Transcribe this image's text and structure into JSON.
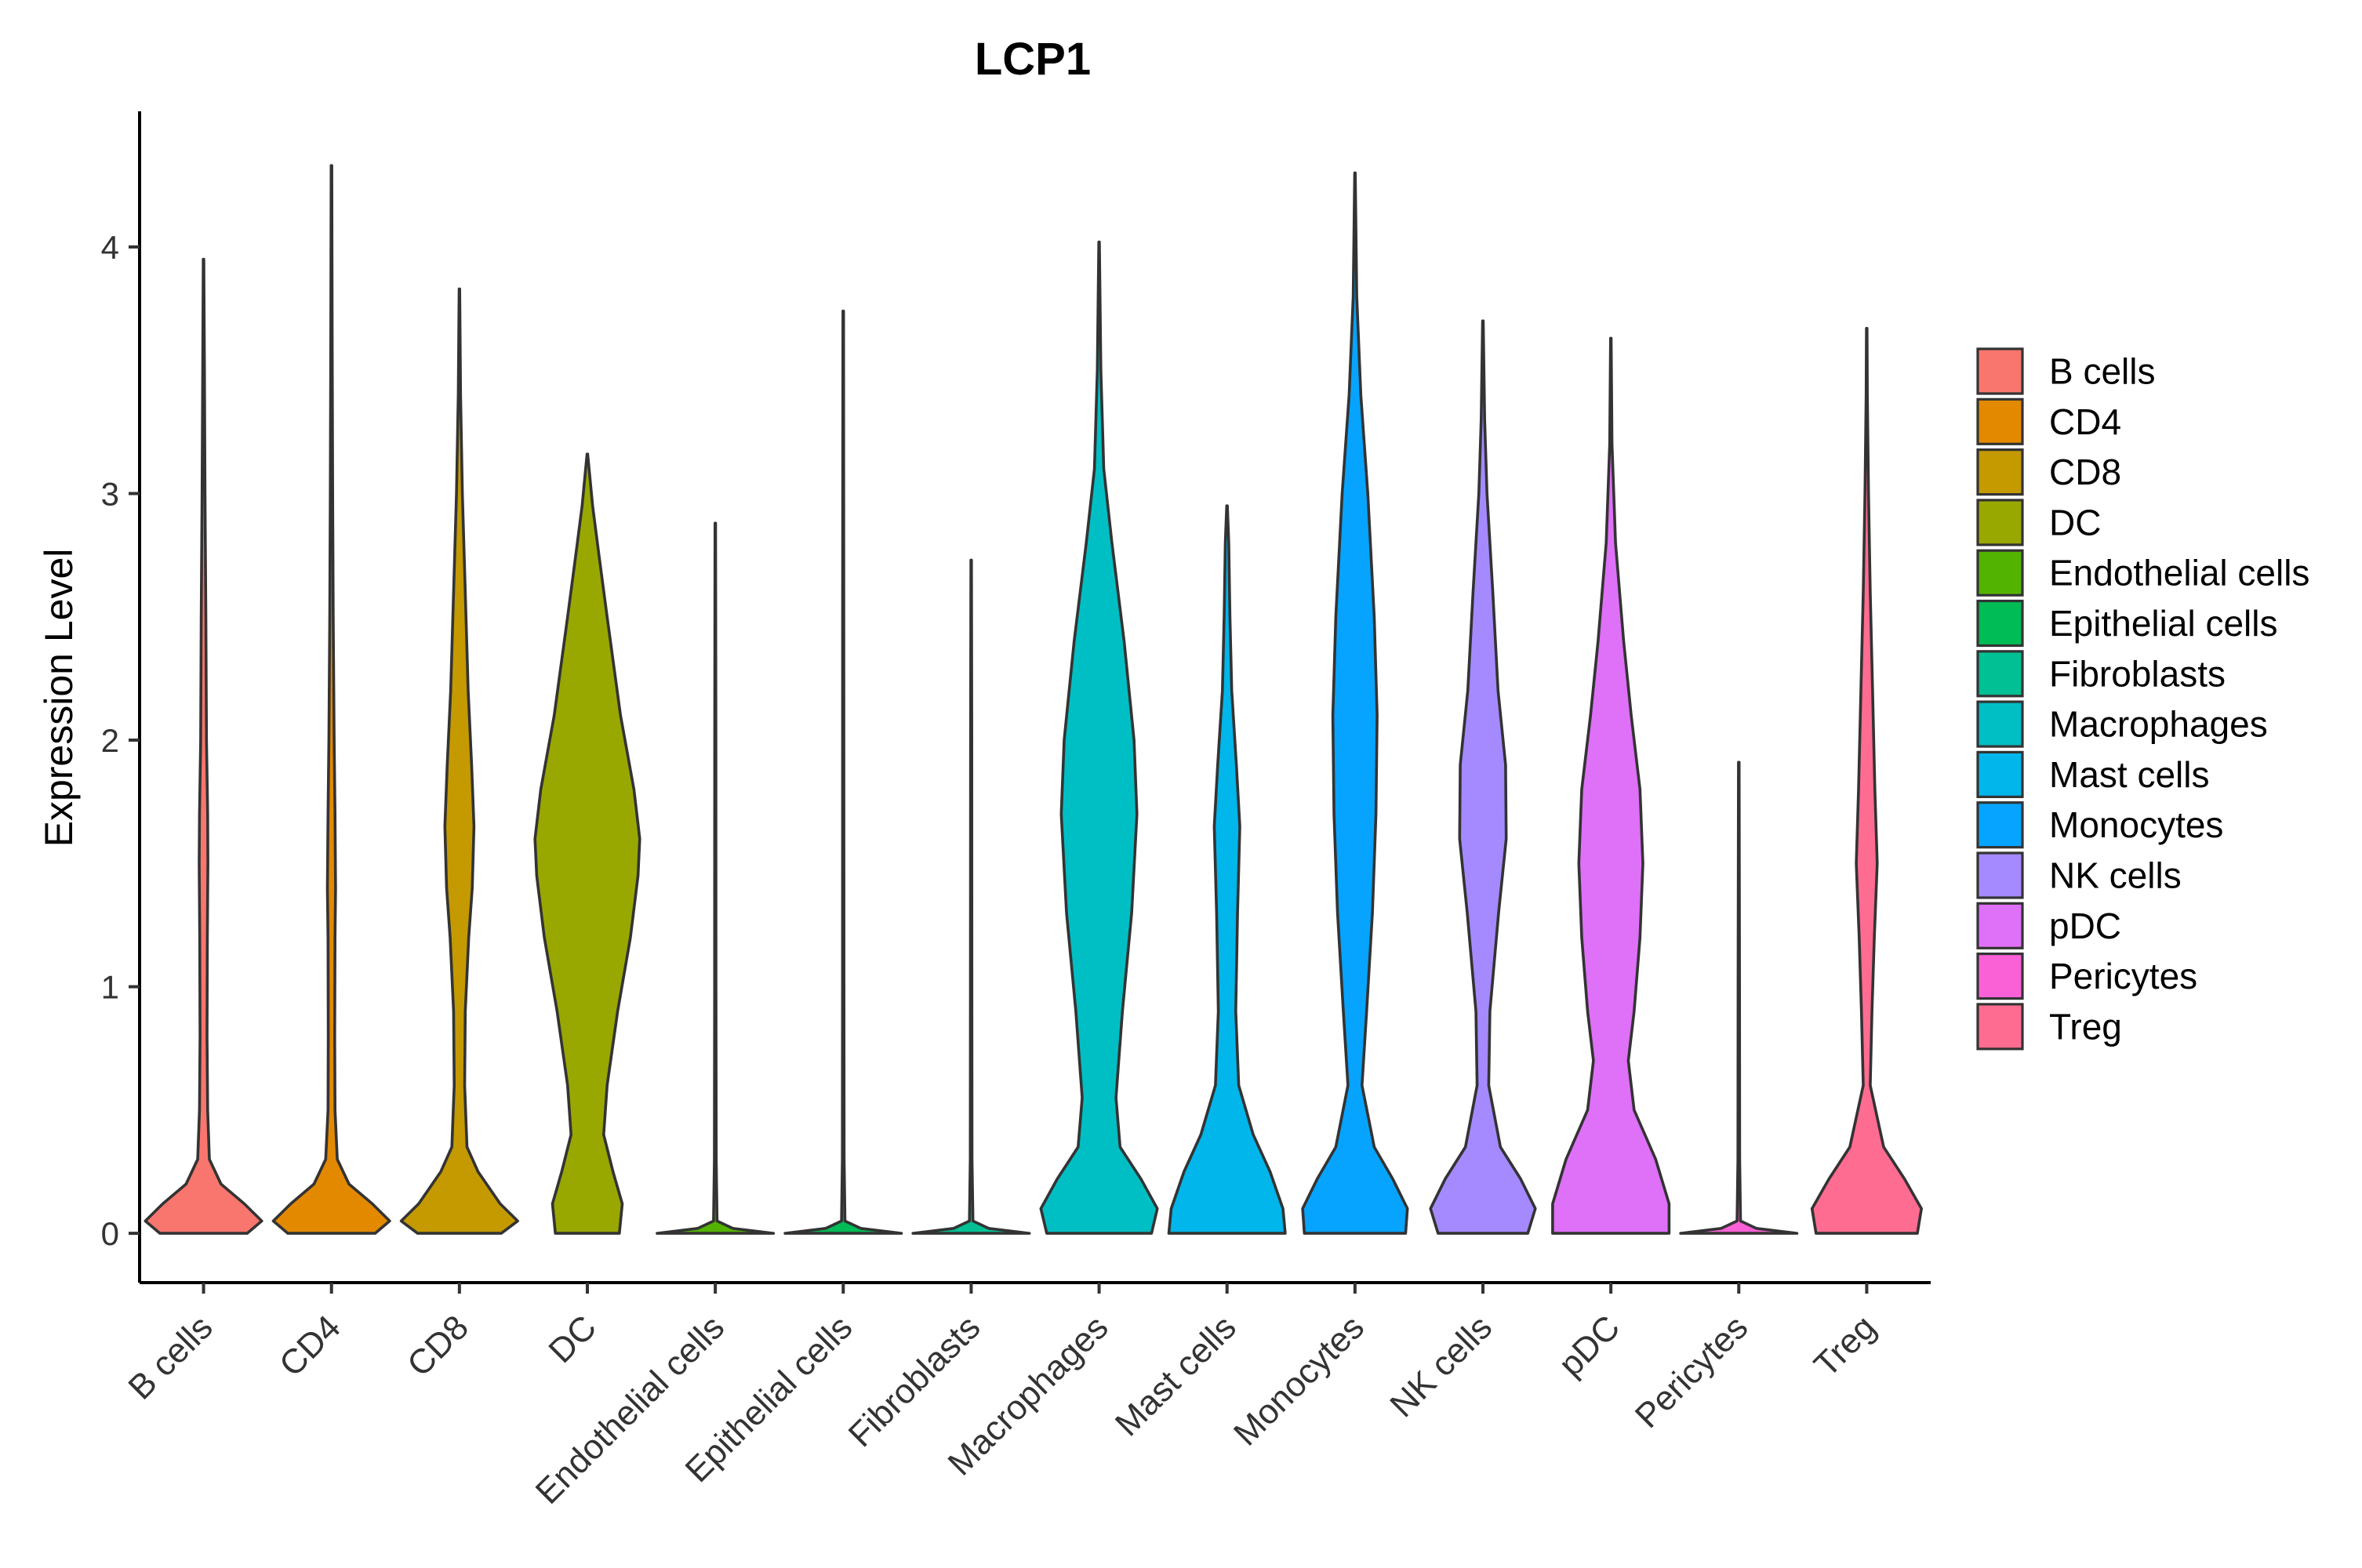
{
  "chart_data": {
    "type": "violin",
    "title": "LCP1",
    "xlabel": "",
    "ylabel": "Expression Level",
    "ylim": [
      -0.2,
      4.55
    ],
    "yticks": [
      0,
      1,
      2,
      3,
      4
    ],
    "grid": false,
    "legend_position": "right",
    "categories": [
      "B cells",
      "CD4",
      "CD8",
      "DC",
      "Endothelial cells",
      "Epithelial cells",
      "Fibroblasts",
      "Macrophages",
      "Mast cells",
      "Monocytes",
      "NK cells",
      "pDC",
      "Pericytes",
      "Treg"
    ],
    "series": [
      {
        "name": "B cells",
        "color": "#F8766D",
        "max": 3.95,
        "profile": [
          [
            0,
            0.75
          ],
          [
            0.05,
            1.0
          ],
          [
            0.12,
            0.7
          ],
          [
            0.2,
            0.3
          ],
          [
            0.3,
            0.1
          ],
          [
            0.5,
            0.07
          ],
          [
            0.8,
            0.06
          ],
          [
            1.2,
            0.065
          ],
          [
            1.5,
            0.075
          ],
          [
            1.7,
            0.07
          ],
          [
            2.0,
            0.05
          ],
          [
            2.5,
            0.04
          ],
          [
            3.0,
            0.025
          ],
          [
            3.5,
            0.015
          ],
          [
            3.95,
            0.005
          ]
        ]
      },
      {
        "name": "CD4",
        "color": "#E38900",
        "max": 4.33,
        "profile": [
          [
            0,
            0.75
          ],
          [
            0.05,
            1.0
          ],
          [
            0.12,
            0.7
          ],
          [
            0.2,
            0.3
          ],
          [
            0.3,
            0.1
          ],
          [
            0.5,
            0.06
          ],
          [
            0.8,
            0.055
          ],
          [
            1.2,
            0.06
          ],
          [
            1.4,
            0.07
          ],
          [
            1.7,
            0.06
          ],
          [
            2.0,
            0.045
          ],
          [
            2.5,
            0.03
          ],
          [
            3.0,
            0.02
          ],
          [
            3.6,
            0.012
          ],
          [
            4.33,
            0.005
          ]
        ]
      },
      {
        "name": "CD8",
        "color": "#C49A00",
        "max": 3.83,
        "profile": [
          [
            0,
            0.72
          ],
          [
            0.05,
            1.0
          ],
          [
            0.12,
            0.7
          ],
          [
            0.25,
            0.32
          ],
          [
            0.35,
            0.13
          ],
          [
            0.6,
            0.09
          ],
          [
            0.9,
            0.1
          ],
          [
            1.2,
            0.16
          ],
          [
            1.4,
            0.22
          ],
          [
            1.65,
            0.25
          ],
          [
            1.9,
            0.21
          ],
          [
            2.2,
            0.15
          ],
          [
            2.6,
            0.1
          ],
          [
            3.0,
            0.05
          ],
          [
            3.4,
            0.02
          ],
          [
            3.83,
            0.005
          ]
        ]
      },
      {
        "name": "DC",
        "color": "#99A800",
        "max": 3.16,
        "profile": [
          [
            0,
            0.55
          ],
          [
            0.12,
            0.6
          ],
          [
            0.25,
            0.44
          ],
          [
            0.4,
            0.28
          ],
          [
            0.6,
            0.34
          ],
          [
            0.9,
            0.52
          ],
          [
            1.2,
            0.74
          ],
          [
            1.45,
            0.87
          ],
          [
            1.6,
            0.9
          ],
          [
            1.8,
            0.8
          ],
          [
            2.1,
            0.57
          ],
          [
            2.5,
            0.34
          ],
          [
            2.75,
            0.2
          ],
          [
            2.95,
            0.09
          ],
          [
            3.16,
            0.005
          ]
        ]
      },
      {
        "name": "Endothelial cells",
        "color": "#53B400",
        "max": 2.88,
        "profile": [
          [
            0,
            1.0
          ],
          [
            0.02,
            0.3
          ],
          [
            0.05,
            0.03
          ],
          [
            0.3,
            0.015
          ],
          [
            1.0,
            0.012
          ],
          [
            2.0,
            0.01
          ],
          [
            2.88,
            0.005
          ]
        ]
      },
      {
        "name": "Epithelial cells",
        "color": "#00BC56",
        "max": 3.74,
        "profile": [
          [
            0,
            1.0
          ],
          [
            0.02,
            0.3
          ],
          [
            0.05,
            0.03
          ],
          [
            0.3,
            0.015
          ],
          [
            1.0,
            0.012
          ],
          [
            2.5,
            0.01
          ],
          [
            3.74,
            0.005
          ]
        ]
      },
      {
        "name": "Fibroblasts",
        "color": "#00C094",
        "max": 2.73,
        "profile": [
          [
            0,
            1.0
          ],
          [
            0.02,
            0.3
          ],
          [
            0.05,
            0.03
          ],
          [
            0.3,
            0.015
          ],
          [
            1.0,
            0.012
          ],
          [
            2.0,
            0.01
          ],
          [
            2.73,
            0.005
          ]
        ]
      },
      {
        "name": "Macrophages",
        "color": "#00BFC4",
        "max": 4.02,
        "profile": [
          [
            0,
            0.9
          ],
          [
            0.1,
            1.0
          ],
          [
            0.22,
            0.72
          ],
          [
            0.35,
            0.36
          ],
          [
            0.55,
            0.29
          ],
          [
            0.9,
            0.4
          ],
          [
            1.3,
            0.56
          ],
          [
            1.7,
            0.65
          ],
          [
            2.0,
            0.6
          ],
          [
            2.4,
            0.43
          ],
          [
            2.8,
            0.22
          ],
          [
            3.1,
            0.08
          ],
          [
            3.5,
            0.03
          ],
          [
            4.02,
            0.005
          ]
        ]
      },
      {
        "name": "Mast cells",
        "color": "#00B6EB",
        "max": 2.95,
        "profile": [
          [
            0,
            1.0
          ],
          [
            0.1,
            0.96
          ],
          [
            0.25,
            0.74
          ],
          [
            0.4,
            0.45
          ],
          [
            0.6,
            0.2
          ],
          [
            0.9,
            0.15
          ],
          [
            1.3,
            0.18
          ],
          [
            1.65,
            0.22
          ],
          [
            1.9,
            0.16
          ],
          [
            2.2,
            0.08
          ],
          [
            2.5,
            0.05
          ],
          [
            2.8,
            0.03
          ],
          [
            2.95,
            0.005
          ]
        ]
      },
      {
        "name": "Monocytes",
        "color": "#06A4FF",
        "max": 4.3,
        "profile": [
          [
            0,
            0.87
          ],
          [
            0.1,
            0.9
          ],
          [
            0.22,
            0.65
          ],
          [
            0.35,
            0.33
          ],
          [
            0.6,
            0.12
          ],
          [
            0.9,
            0.2
          ],
          [
            1.3,
            0.3
          ],
          [
            1.7,
            0.36
          ],
          [
            2.1,
            0.38
          ],
          [
            2.5,
            0.33
          ],
          [
            3.0,
            0.22
          ],
          [
            3.4,
            0.1
          ],
          [
            3.8,
            0.03
          ],
          [
            4.3,
            0.005
          ]
        ]
      },
      {
        "name": "NK cells",
        "color": "#A58AFF",
        "max": 3.7,
        "profile": [
          [
            0,
            0.77
          ],
          [
            0.1,
            0.9
          ],
          [
            0.22,
            0.65
          ],
          [
            0.35,
            0.3
          ],
          [
            0.6,
            0.1
          ],
          [
            0.9,
            0.12
          ],
          [
            1.3,
            0.27
          ],
          [
            1.6,
            0.4
          ],
          [
            1.9,
            0.39
          ],
          [
            2.2,
            0.26
          ],
          [
            2.6,
            0.17
          ],
          [
            3.0,
            0.07
          ],
          [
            3.3,
            0.03
          ],
          [
            3.7,
            0.005
          ]
        ]
      },
      {
        "name": "pDC",
        "color": "#DF70F8",
        "max": 3.63,
        "profile": [
          [
            0,
            1.0
          ],
          [
            0.12,
            1.0
          ],
          [
            0.3,
            0.77
          ],
          [
            0.5,
            0.4
          ],
          [
            0.7,
            0.3
          ],
          [
            0.9,
            0.4
          ],
          [
            1.2,
            0.5
          ],
          [
            1.5,
            0.55
          ],
          [
            1.8,
            0.5
          ],
          [
            2.1,
            0.35
          ],
          [
            2.4,
            0.22
          ],
          [
            2.8,
            0.08
          ],
          [
            3.2,
            0.02
          ],
          [
            3.63,
            0.005
          ]
        ]
      },
      {
        "name": "Pericytes",
        "color": "#FB61D7",
        "max": 1.91,
        "profile": [
          [
            0,
            1.0
          ],
          [
            0.02,
            0.3
          ],
          [
            0.05,
            0.03
          ],
          [
            0.3,
            0.015
          ],
          [
            1.0,
            0.012
          ],
          [
            1.91,
            0.005
          ]
        ]
      },
      {
        "name": "Treg",
        "color": "#FF6C91",
        "max": 3.67,
        "profile": [
          [
            0,
            0.87
          ],
          [
            0.1,
            0.94
          ],
          [
            0.22,
            0.65
          ],
          [
            0.35,
            0.29
          ],
          [
            0.6,
            0.06
          ],
          [
            0.9,
            0.09
          ],
          [
            1.2,
            0.13
          ],
          [
            1.5,
            0.18
          ],
          [
            1.8,
            0.14
          ],
          [
            2.2,
            0.1
          ],
          [
            2.6,
            0.06
          ],
          [
            3.0,
            0.03
          ],
          [
            3.4,
            0.01
          ],
          [
            3.67,
            0.005
          ]
        ]
      }
    ]
  }
}
